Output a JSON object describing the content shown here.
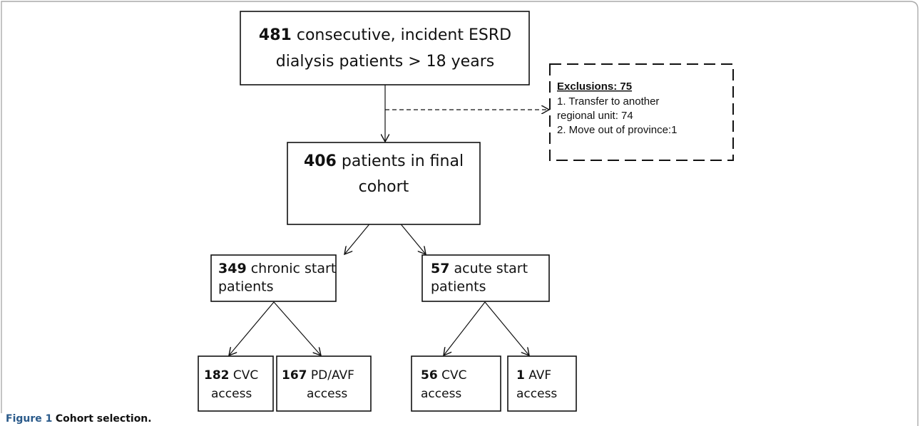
{
  "nodes": [
    {
      "count": 481,
      "lines": [
        "consecutive, incident ESRD",
        "dialysis patients > 18 years"
      ]
    },
    {
      "count": 406,
      "lines": [
        "patients in final",
        "cohort"
      ]
    },
    {
      "count": 349,
      "lines": [
        "chronic start",
        "patients"
      ]
    },
    {
      "count": 57,
      "lines": [
        "acute start",
        "patients"
      ]
    },
    {
      "count": 182,
      "lines": [
        "CVC",
        "access"
      ]
    },
    {
      "count": 167,
      "lines": [
        "PD/AVF",
        "access"
      ]
    },
    {
      "count": 56,
      "lines": [
        "CVC",
        "access"
      ]
    },
    {
      "count": 1,
      "lines": [
        "AVF",
        "access"
      ]
    }
  ],
  "exclusions": {
    "title": "Exclusions: 75",
    "lines": [
      "1. Transfer to another",
      "regional unit: 74",
      "2. Move out of province:1"
    ]
  },
  "caption": {
    "label": "Figure 1",
    "text": "Cohort selection."
  }
}
